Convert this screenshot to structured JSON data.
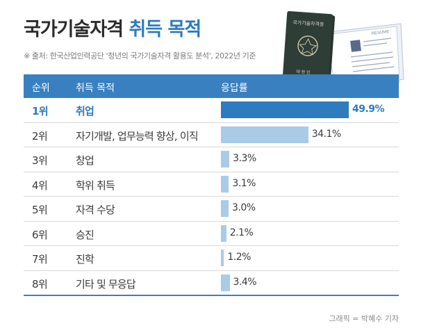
{
  "header": {
    "title_main": "국가기술자격",
    "title_accent": "취득 목적",
    "source": "※ 출처: 한국산업인력공단 '청년의 국가기술자격 활용도 분석', 2022년 기준"
  },
  "illustration": {
    "passport_label": "국가기술자격증",
    "passport_footer": "대 한 민",
    "resume_label": "RESUME"
  },
  "table": {
    "headers": {
      "rank": "순위",
      "purpose": "취득 목적",
      "response": "응답률"
    }
  },
  "chart_data": {
    "type": "bar",
    "orientation": "horizontal",
    "categories": [
      "취업",
      "자기개발, 업무능력 향상, 이직",
      "창업",
      "학위 취득",
      "자격 수당",
      "승진",
      "진학",
      "기타 및 무응답"
    ],
    "ranks": [
      "1위",
      "2위",
      "3위",
      "4위",
      "5위",
      "6위",
      "7위",
      "8위"
    ],
    "values": [
      49.9,
      34.1,
      3.3,
      3.1,
      3.0,
      2.1,
      1.2,
      3.4
    ],
    "value_labels": [
      "49.9%",
      "34.1%",
      "3.3%",
      "3.1%",
      "3.0%",
      "2.1%",
      "1.2%",
      "3.4%"
    ],
    "unit": "%",
    "highlight_index": 0,
    "colors": {
      "highlight": "#2e7bbd",
      "bar": "#a9cbe8",
      "header": "#3980c1"
    }
  },
  "footer": {
    "credit": "그래픽 = 박혜수 기자"
  }
}
